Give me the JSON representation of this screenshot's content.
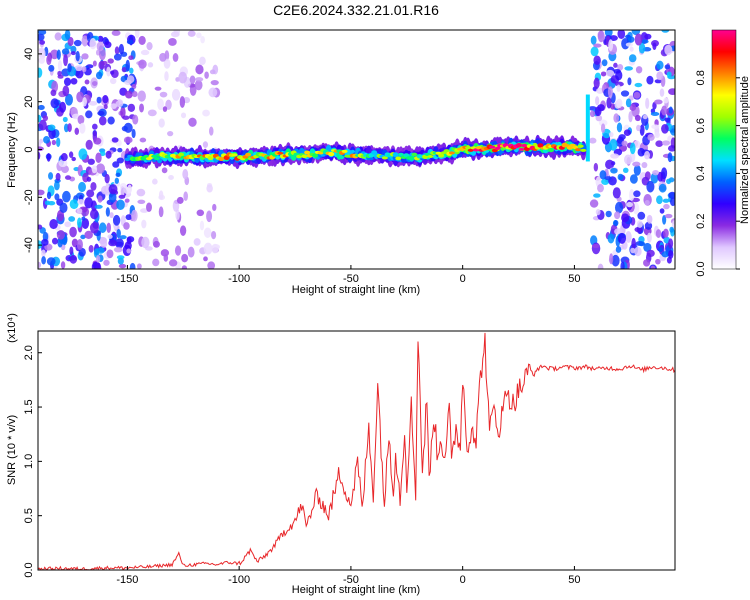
{
  "figure_title": "C2E6.2024.332.21.01.R16",
  "chart_data": [
    {
      "type": "heatmap",
      "title": "C2E6.2024.332.21.01.R16",
      "xlabel": "Height of straight line (km)",
      "ylabel": "Frequency (Hz)",
      "xlim": [
        -190,
        95
      ],
      "ylim": [
        -50,
        50
      ],
      "xticks": [
        -150,
        -100,
        -50,
        0,
        50
      ],
      "yticks": [
        -40,
        -20,
        0,
        20,
        40
      ],
      "colorbar": {
        "label": "Normalized spectral amplitude",
        "range": [
          0,
          1
        ],
        "ticks": [
          "0.0",
          "0.2",
          "0.4",
          "0.6",
          "0.8"
        ],
        "colors": [
          "#ffffff",
          "#e0c8ff",
          "#8a2be2",
          "#3000ff",
          "#0060ff",
          "#00e0ff",
          "#00ff60",
          "#a0ff00",
          "#ffff00",
          "#ff8000",
          "#ff0000",
          "#ff0090"
        ]
      },
      "ridge": {
        "description": "dominant frequency ridge",
        "x": [
          -150,
          -140,
          -130,
          -120,
          -110,
          -100,
          -90,
          -80,
          -70,
          -60,
          -50,
          -40,
          -30,
          -20,
          -10,
          0,
          10,
          20,
          30,
          40,
          50,
          55
        ],
        "y": [
          -4,
          -3,
          -3,
          -3,
          -3,
          -3,
          -3,
          -2,
          -2,
          -1,
          -2,
          -2,
          -3,
          -3,
          -2,
          0,
          0,
          1,
          1,
          1,
          1,
          0
        ],
        "amplitude": [
          0.3,
          0.45,
          0.5,
          0.55,
          0.55,
          0.6,
          0.55,
          0.55,
          0.5,
          0.5,
          0.55,
          0.4,
          0.4,
          0.45,
          0.5,
          0.7,
          0.7,
          0.75,
          0.75,
          0.7,
          0.6,
          0.4
        ]
      },
      "noise_regions": [
        {
          "x": [
            -190,
            -147
          ],
          "y": [
            -50,
            50
          ],
          "level": 0.25
        },
        {
          "x": [
            -147,
            -110
          ],
          "y": [
            -50,
            50
          ],
          "level": 0.08
        },
        {
          "x": [
            58,
            95
          ],
          "y": [
            -50,
            50
          ],
          "level": 0.25
        }
      ],
      "spike": {
        "x": 56,
        "y": [
          -5,
          23
        ],
        "level": 0.45
      }
    },
    {
      "type": "line",
      "xlabel": "Height of straight line (km)",
      "ylabel": "SNR (10 * v/v)",
      "y_multiplier": "(x10⁴)",
      "xlim": [
        -190,
        95
      ],
      "ylim": [
        0,
        2.2
      ],
      "xticks": [
        -150,
        -100,
        -50,
        0,
        50
      ],
      "yticks": [
        "0.0",
        "0.5",
        "1.0",
        "1.5",
        "2.0"
      ],
      "series": [
        {
          "color": "#e8272a",
          "x": [
            -190,
            -180,
            -170,
            -160,
            -150,
            -140,
            -130,
            -127,
            -125,
            -120,
            -115,
            -110,
            -105,
            -100,
            -98,
            -95,
            -92,
            -90,
            -85,
            -80,
            -75,
            -72,
            -70,
            -65,
            -60,
            -55,
            -50,
            -47,
            -45,
            -42,
            -40,
            -38,
            -35,
            -33,
            -31,
            -30,
            -28,
            -26,
            -25,
            -23,
            -21,
            -20,
            -18,
            -16,
            -15,
            -13,
            -11,
            -10,
            -8,
            -6,
            -5,
            -3,
            -1,
            0,
            2,
            4,
            6,
            8,
            10,
            12,
            14,
            16,
            18,
            20,
            22,
            25,
            28,
            30,
            32,
            35,
            40,
            45,
            50,
            55,
            60,
            65,
            70,
            75,
            80,
            85,
            90,
            95
          ],
          "y": [
            0.01,
            0.015,
            0.01,
            0.02,
            0.02,
            0.03,
            0.05,
            0.15,
            0.04,
            0.05,
            0.06,
            0.05,
            0.07,
            0.06,
            0.1,
            0.18,
            0.08,
            0.1,
            0.2,
            0.35,
            0.45,
            0.6,
            0.4,
            0.7,
            0.5,
            0.9,
            0.6,
            1.0,
            0.55,
            1.3,
            0.7,
            1.7,
            0.6,
            1.25,
            0.75,
            1.1,
            0.65,
            1.3,
            0.8,
            1.5,
            0.7,
            2.2,
            0.9,
            1.6,
            0.8,
            1.45,
            1.0,
            1.25,
            1.05,
            1.5,
            0.95,
            1.3,
            1.15,
            1.8,
            1.1,
            1.35,
            1.2,
            1.8,
            2.1,
            1.25,
            1.5,
            1.3,
            1.45,
            1.7,
            1.5,
            1.65,
            1.75,
            1.85,
            1.8,
            1.88,
            1.85,
            1.87,
            1.86,
            1.87,
            1.85,
            1.86,
            1.85,
            1.88,
            1.84,
            1.87,
            1.86,
            1.84
          ]
        }
      ]
    }
  ]
}
